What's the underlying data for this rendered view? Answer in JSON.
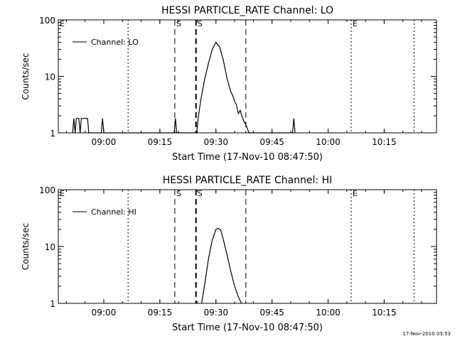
{
  "footer_timestamp": "17-Nov-2010 03:53",
  "chart_data": [
    {
      "type": "line",
      "title": "HESSI PARTICLE_RATE Channel: LO",
      "xlabel": "Start Time (17-Nov-10 08:47:50)",
      "ylabel": "Counts/sec",
      "yscale": "log",
      "ylim": [
        1,
        100
      ],
      "xlim": [
        "08:47:50",
        "10:29:00"
      ],
      "x_ticks": [
        "09:00",
        "09:15",
        "09:30",
        "09:45",
        "10:00",
        "10:15"
      ],
      "y_ticks": [
        "1",
        "10",
        "100"
      ],
      "legend": {
        "position": "top-left",
        "entries": [
          "Channel: LO"
        ]
      },
      "markers": [
        {
          "time": "08:47:50",
          "label": "E",
          "style": "dotted"
        },
        {
          "time": "09:06:30",
          "label": "",
          "style": "dotted"
        },
        {
          "time": "09:19:00",
          "label": "S",
          "style": "dashed"
        },
        {
          "time": "09:24:40",
          "label": "S",
          "style": "dashed-bold"
        },
        {
          "time": "09:38:00",
          "label": "",
          "style": "dashed"
        },
        {
          "time": "10:06:10",
          "label": "E",
          "style": "dotted"
        },
        {
          "time": "10:23:00",
          "label": "",
          "style": "dotted"
        }
      ],
      "series": [
        {
          "name": "Channel: LO",
          "x": [
            "08:51:40",
            "08:52:00",
            "08:52:20",
            "08:52:40",
            "08:53:00",
            "08:53:20",
            "08:53:40",
            "08:54:00",
            "08:54:20",
            "08:54:40",
            "08:55:00",
            "08:55:40",
            "08:56:00",
            "08:56:20",
            "08:56:40",
            "08:57:00",
            "08:59:20",
            "08:59:40",
            "09:00:00",
            "09:18:50",
            "09:19:10",
            "09:19:30",
            "09:24:50",
            "09:25:20",
            "09:26:00",
            "09:27:00",
            "09:28:00",
            "09:29:00",
            "09:30:00",
            "09:31:00",
            "09:32:00",
            "09:33:00",
            "09:34:00",
            "09:34:30",
            "09:35:00",
            "09:35:30",
            "09:36:00",
            "09:36:30",
            "09:37:00",
            "09:37:30",
            "09:38:00",
            "09:38:30",
            "09:38:50",
            "09:50:30",
            "09:50:50",
            "09:51:10"
          ],
          "y": [
            1,
            1.8,
            1,
            1.8,
            1.8,
            1.8,
            1,
            1.8,
            1.8,
            1.8,
            1.8,
            1.8,
            1,
            1,
            1,
            1,
            1,
            1.8,
            1,
            1,
            1.8,
            1,
            1,
            2,
            4,
            9,
            17,
            30,
            40,
            33,
            19,
            9,
            5.3,
            4.6,
            3.6,
            3.1,
            2.2,
            2.5,
            1.9,
            1.6,
            1.4,
            1.15,
            1,
            1,
            1.8,
            1
          ]
        }
      ]
    },
    {
      "type": "line",
      "title": "HESSI PARTICLE_RATE Channel: HI",
      "xlabel": "Start Time (17-Nov-10 08:47:50)",
      "ylabel": "Counts/sec",
      "yscale": "log",
      "ylim": [
        1,
        100
      ],
      "xlim": [
        "08:47:50",
        "10:29:00"
      ],
      "x_ticks": [
        "09:00",
        "09:15",
        "09:30",
        "09:45",
        "10:00",
        "10:15"
      ],
      "y_ticks": [
        "1",
        "10",
        "100"
      ],
      "legend": {
        "position": "top-left",
        "entries": [
          "Channel: HI"
        ]
      },
      "markers": [
        {
          "time": "08:47:50",
          "label": "E",
          "style": "dotted"
        },
        {
          "time": "09:06:30",
          "label": "",
          "style": "dotted"
        },
        {
          "time": "09:19:00",
          "label": "S",
          "style": "dashed"
        },
        {
          "time": "09:24:40",
          "label": "S",
          "style": "dashed-bold"
        },
        {
          "time": "09:38:00",
          "label": "",
          "style": "dashed"
        },
        {
          "time": "10:06:10",
          "label": "E",
          "style": "dotted"
        },
        {
          "time": "10:23:00",
          "label": "",
          "style": "dotted"
        }
      ],
      "series": [
        {
          "name": "Channel: HI",
          "x": [
            "09:26:10",
            "09:27:00",
            "09:28:00",
            "09:29:00",
            "09:30:00",
            "09:30:40",
            "09:31:20",
            "09:32:00",
            "09:33:00",
            "09:34:00",
            "09:35:00",
            "09:36:00",
            "09:36:50"
          ],
          "y": [
            1,
            2.2,
            6,
            13,
            20,
            21,
            19,
            13,
            7,
            3.6,
            2,
            1.3,
            1
          ]
        }
      ]
    }
  ]
}
